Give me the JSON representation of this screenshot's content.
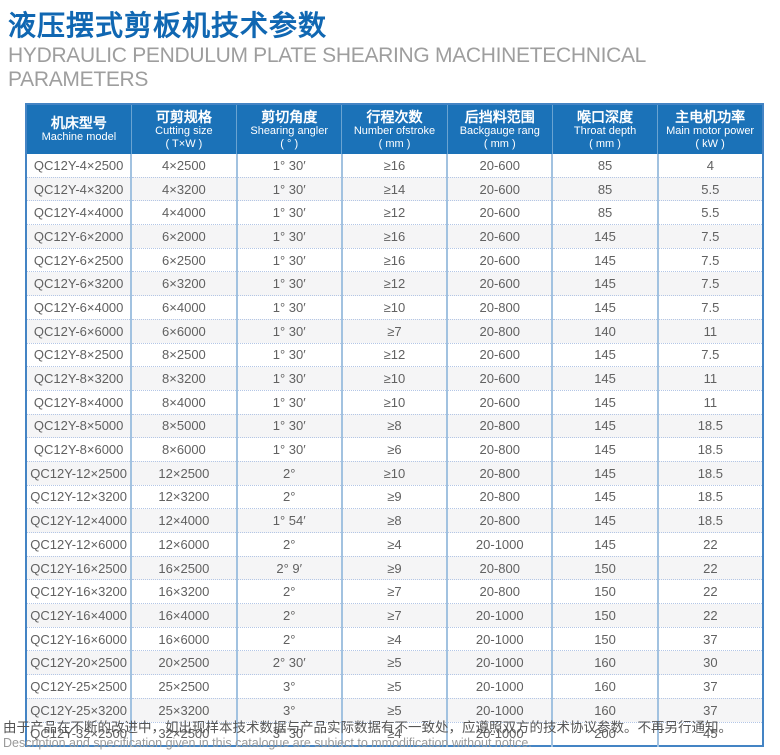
{
  "header": {
    "title": "液压摆式剪板机技术参数",
    "subtitle_line1": "HYDRAULIC PENDULUM PLATE SHEARING MACHINETECHNICAL",
    "subtitle_line2": "PARAMETERS"
  },
  "table": {
    "columns": [
      {
        "cn": "机床型号",
        "en": "Machine model",
        "unit": ""
      },
      {
        "cn": "可剪规格",
        "en": "Cutting size",
        "unit": "( T×W )"
      },
      {
        "cn": "剪切角度",
        "en": "Shearing angler",
        "unit": "( ° )"
      },
      {
        "cn": "行程次数",
        "en": "Number ofstroke",
        "unit": "( mm )"
      },
      {
        "cn": "后挡料范围",
        "en": "Backgauge rang",
        "unit": "( mm )"
      },
      {
        "cn": "喉口深度",
        "en": "Throat depth",
        "unit": "( mm )"
      },
      {
        "cn": "主电机功率",
        "en": "Main motor power",
        "unit": "( kW )"
      }
    ],
    "rows": [
      [
        "QC12Y-4×2500",
        "4×2500",
        "1° 30′",
        "≥16",
        "20-600",
        "85",
        "4"
      ],
      [
        "QC12Y-4×3200",
        "4×3200",
        "1° 30′",
        "≥14",
        "20-600",
        "85",
        "5.5"
      ],
      [
        "QC12Y-4×4000",
        "4×4000",
        "1° 30′",
        "≥12",
        "20-600",
        "85",
        "5.5"
      ],
      [
        "QC12Y-6×2000",
        "6×2000",
        "1° 30′",
        "≥16",
        "20-600",
        "145",
        "7.5"
      ],
      [
        "QC12Y-6×2500",
        "6×2500",
        "1° 30′",
        "≥16",
        "20-600",
        "145",
        "7.5"
      ],
      [
        "QC12Y-6×3200",
        "6×3200",
        "1° 30′",
        "≥12",
        "20-600",
        "145",
        "7.5"
      ],
      [
        "QC12Y-6×4000",
        "6×4000",
        "1° 30′",
        "≥10",
        "20-800",
        "145",
        "7.5"
      ],
      [
        "QC12Y-6×6000",
        "6×6000",
        "1° 30′",
        "≥7",
        "20-800",
        "140",
        "11"
      ],
      [
        "QC12Y-8×2500",
        "8×2500",
        "1° 30′",
        "≥12",
        "20-600",
        "145",
        "7.5"
      ],
      [
        "QC12Y-8×3200",
        "8×3200",
        "1° 30′",
        "≥10",
        "20-600",
        "145",
        "11"
      ],
      [
        "QC12Y-8×4000",
        "8×4000",
        "1° 30′",
        "≥10",
        "20-600",
        "145",
        "11"
      ],
      [
        "QC12Y-8×5000",
        "8×5000",
        "1° 30′",
        "≥8",
        "20-800",
        "145",
        "18.5"
      ],
      [
        "QC12Y-8×6000",
        "8×6000",
        "1° 30′",
        "≥6",
        "20-800",
        "145",
        "18.5"
      ],
      [
        "QC12Y-12×2500",
        "12×2500",
        "2°",
        "≥10",
        "20-800",
        "145",
        "18.5"
      ],
      [
        "QC12Y-12×3200",
        "12×3200",
        "2°",
        "≥9",
        "20-800",
        "145",
        "18.5"
      ],
      [
        "QC12Y-12×4000",
        "12×4000",
        "1° 54′",
        "≥8",
        "20-800",
        "145",
        "18.5"
      ],
      [
        "QC12Y-12×6000",
        "12×6000",
        "2°",
        "≥4",
        "20-1000",
        "145",
        "22"
      ],
      [
        "QC12Y-16×2500",
        "16×2500",
        "2° 9′",
        "≥9",
        "20-800",
        "150",
        "22"
      ],
      [
        "QC12Y-16×3200",
        "16×3200",
        "2°",
        "≥7",
        "20-800",
        "150",
        "22"
      ],
      [
        "QC12Y-16×4000",
        "16×4000",
        "2°",
        "≥7",
        "20-1000",
        "150",
        "22"
      ],
      [
        "QC12Y-16×6000",
        "16×6000",
        "2°",
        "≥4",
        "20-1000",
        "150",
        "37"
      ],
      [
        "QC12Y-20×2500",
        "20×2500",
        "2° 30′",
        "≥5",
        "20-1000",
        "160",
        "30"
      ],
      [
        "QC12Y-25×2500",
        "25×2500",
        "3°",
        "≥5",
        "20-1000",
        "160",
        "37"
      ],
      [
        "QC12Y-25×3200",
        "25×3200",
        "3°",
        "≥5",
        "20-1000",
        "160",
        "37"
      ],
      [
        "QC12Y-32×2500",
        "32×2500",
        "3° 30′",
        "≥4",
        "20-1000",
        "200",
        "45"
      ]
    ]
  },
  "footer": {
    "cn": "由于产品在不断的改进中，如出现样本技术数据与产品实际数据有不一致处，应遵照双方的技术协议参数。不再另行通知。",
    "en": "Description and specification given in this catalogue are subiect to mmodification without notice."
  },
  "colors": {
    "title_blue": "#1067b2",
    "header_bg": "#1b72b8",
    "outer_border": "#4484c4",
    "grid_vertical": "#a2c2e0",
    "grid_dotted": "#b3c6e6",
    "row_alt_bg": "#f5f5f6",
    "subtitle_gray": "#9e9e9e"
  }
}
